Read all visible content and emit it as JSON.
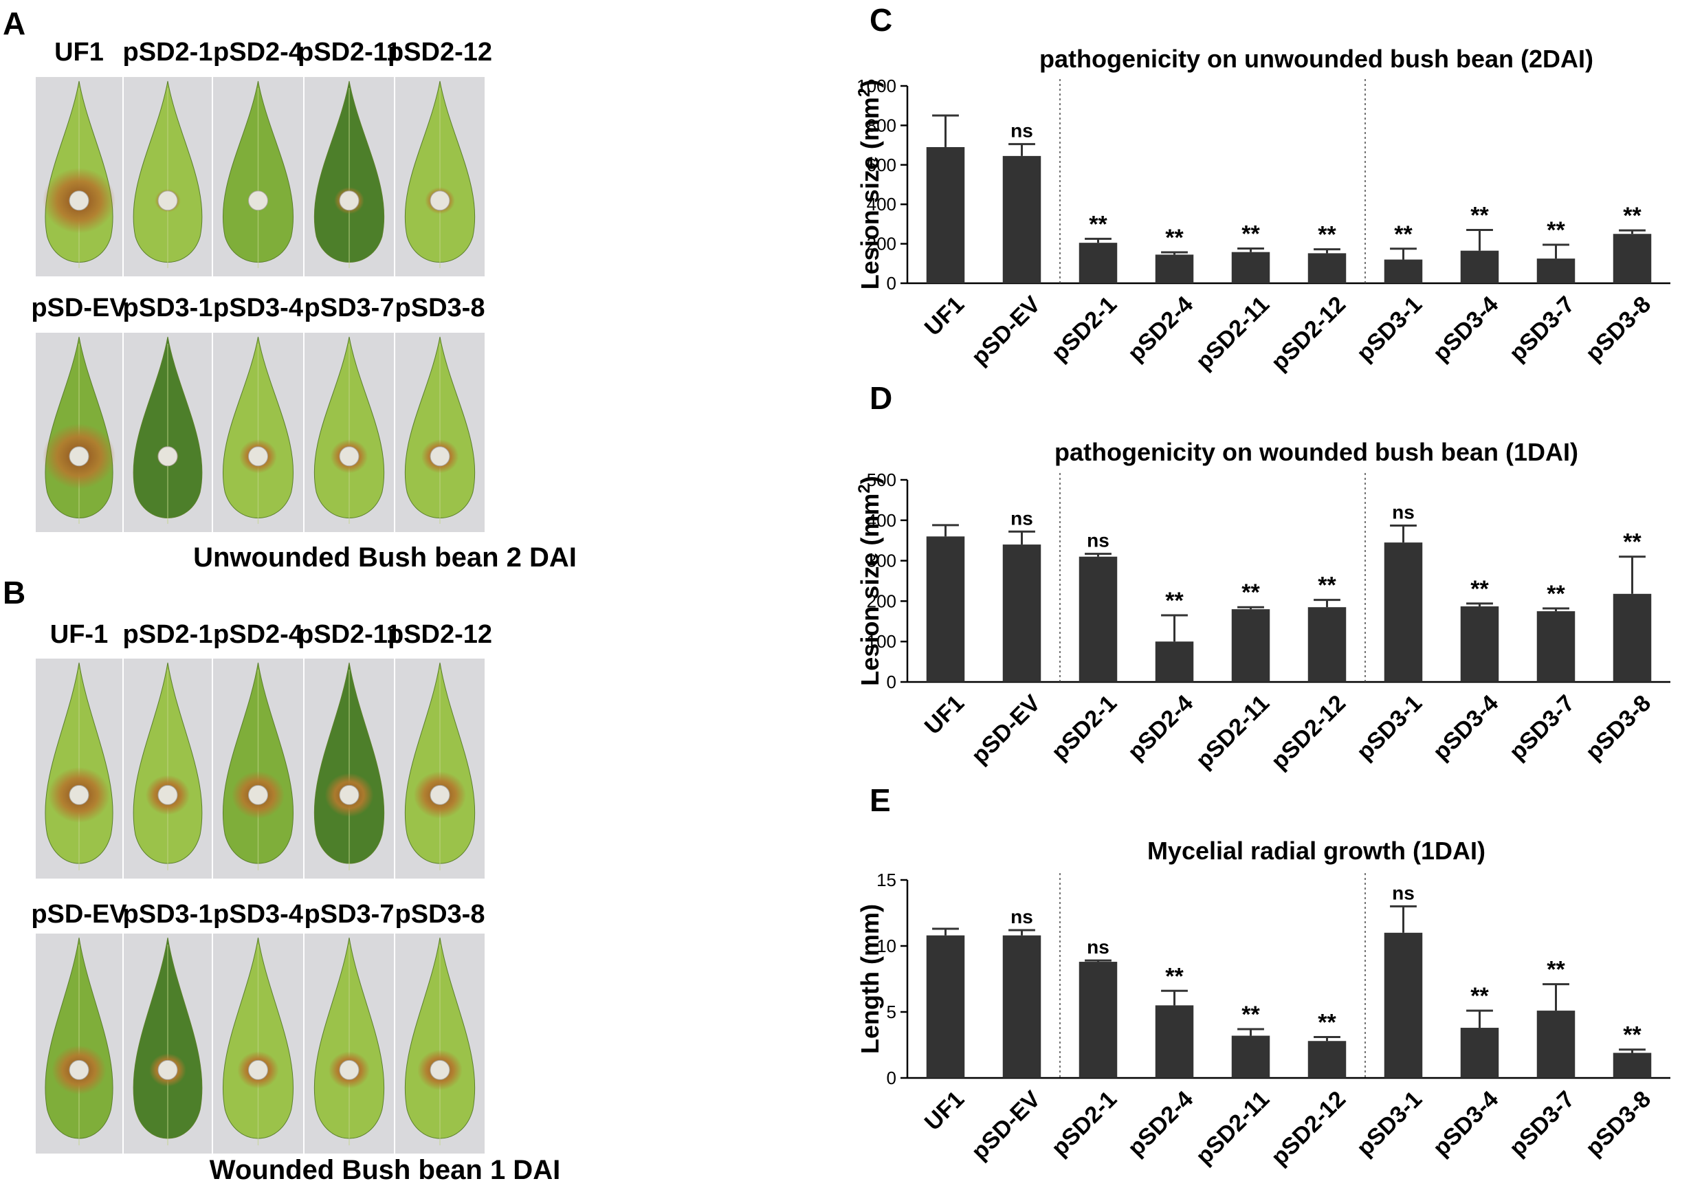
{
  "colors": {
    "bar": "#333333",
    "axis": "#000000",
    "leaf_light": "#9bc24a",
    "leaf_mid": "#7fae3a",
    "leaf_dark": "#4d7f2a",
    "lesion": "#b47a2e",
    "lesion_dark": "#8a4e1f",
    "photo_bg": "#d9d9dc",
    "droplet": "#e6e4dc"
  },
  "panel_letters": {
    "a": "A",
    "b": "B",
    "c": "C",
    "d": "D",
    "e": "E"
  },
  "panel_a": {
    "row1_labels": [
      "UF1",
      "pSD2-1",
      "pSD2-4",
      "pSD2-11",
      "pSD2-12"
    ],
    "row2_labels": [
      "pSD-EV",
      "pSD3-1",
      "pSD3-4",
      "pSD3-7",
      "pSD3-8"
    ],
    "caption": "Unwounded Bush bean 2 DAI",
    "row1_lesion": [
      1.0,
      0.35,
      0.25,
      0.4,
      0.4
    ],
    "row2_lesion": [
      1.0,
      0.3,
      0.5,
      0.5,
      0.5
    ]
  },
  "panel_b": {
    "row1_labels": [
      "UF-1",
      "pSD2-1",
      "pSD2-4",
      "pSD2-11",
      "pSD2-12"
    ],
    "row2_labels": [
      "pSD-EV",
      "pSD3-1",
      "pSD3-4",
      "pSD3-7",
      "pSD3-8"
    ],
    "caption": "Wounded Bush bean 1 DAI",
    "row1_lesion": [
      0.85,
      0.6,
      0.7,
      0.65,
      0.7
    ],
    "row2_lesion": [
      0.75,
      0.5,
      0.55,
      0.55,
      0.6
    ]
  },
  "chart_data": [
    {
      "panel": "C",
      "type": "bar",
      "title": "pathogenicity on unwounded bush bean (2DAI)",
      "ylabel": "Lesion size (mm",
      "ylabel_sup": "2",
      "ylabel_close": ")",
      "ylim": [
        0,
        1000
      ],
      "yticks": [
        0,
        200,
        400,
        600,
        800,
        1000
      ],
      "categories": [
        "UF1",
        "pSD-EV",
        "pSD2-1",
        "pSD2-4",
        "pSD2-11",
        "pSD2-12",
        "pSD3-1",
        "pSD3-4",
        "pSD3-7",
        "pSD3-8"
      ],
      "values": [
        690,
        645,
        205,
        145,
        158,
        152,
        120,
        165,
        125,
        250
      ],
      "errors": [
        160,
        60,
        20,
        12,
        18,
        20,
        55,
        105,
        70,
        18
      ],
      "annotations": [
        "",
        "ns",
        "**",
        "**",
        "**",
        "**",
        "**",
        "**",
        "**",
        "**"
      ],
      "separators_after": [
        1,
        5
      ]
    },
    {
      "panel": "D",
      "type": "bar",
      "title": "pathogenicity on wounded bush bean (1DAI)",
      "ylabel": "Lesion size (mm",
      "ylabel_sup": "2",
      "ylabel_close": ")",
      "ylim": [
        0,
        500
      ],
      "yticks": [
        0,
        100,
        200,
        300,
        400,
        500
      ],
      "categories": [
        "UF1",
        "pSD-EV",
        "pSD2-1",
        "pSD2-4",
        "pSD2-11",
        "pSD2-12",
        "pSD3-1",
        "pSD3-4",
        "pSD3-7",
        "pSD3-8"
      ],
      "values": [
        360,
        340,
        310,
        100,
        180,
        185,
        345,
        187,
        175,
        218
      ],
      "errors": [
        28,
        32,
        7,
        65,
        5,
        18,
        42,
        7,
        7,
        92
      ],
      "annotations": [
        "",
        "ns",
        "ns",
        "**",
        "**",
        "**",
        "ns",
        "**",
        "**",
        "**"
      ],
      "separators_after": [
        1,
        5
      ]
    },
    {
      "panel": "E",
      "type": "bar",
      "title": "Mycelial radial growth (1DAI)",
      "ylabel": "Length  (mm)",
      "ylabel_sup": "",
      "ylabel_close": "",
      "ylim": [
        0,
        15
      ],
      "yticks": [
        0,
        5,
        10,
        15
      ],
      "categories": [
        "UF1",
        "pSD-EV",
        "pSD2-1",
        "pSD2-4",
        "pSD2-11",
        "pSD2-12",
        "pSD3-1",
        "pSD3-4",
        "pSD3-7",
        "pSD3-8"
      ],
      "values": [
        10.8,
        10.8,
        8.8,
        5.5,
        3.2,
        2.8,
        11.0,
        3.8,
        5.1,
        1.9
      ],
      "errors": [
        0.5,
        0.4,
        0.1,
        1.1,
        0.5,
        0.3,
        2.0,
        1.3,
        2.0,
        0.25
      ],
      "annotations": [
        "",
        "ns",
        "ns",
        "**",
        "**",
        "**",
        "ns",
        "**",
        "**",
        "**"
      ],
      "separators_after": [
        1,
        5
      ]
    }
  ]
}
